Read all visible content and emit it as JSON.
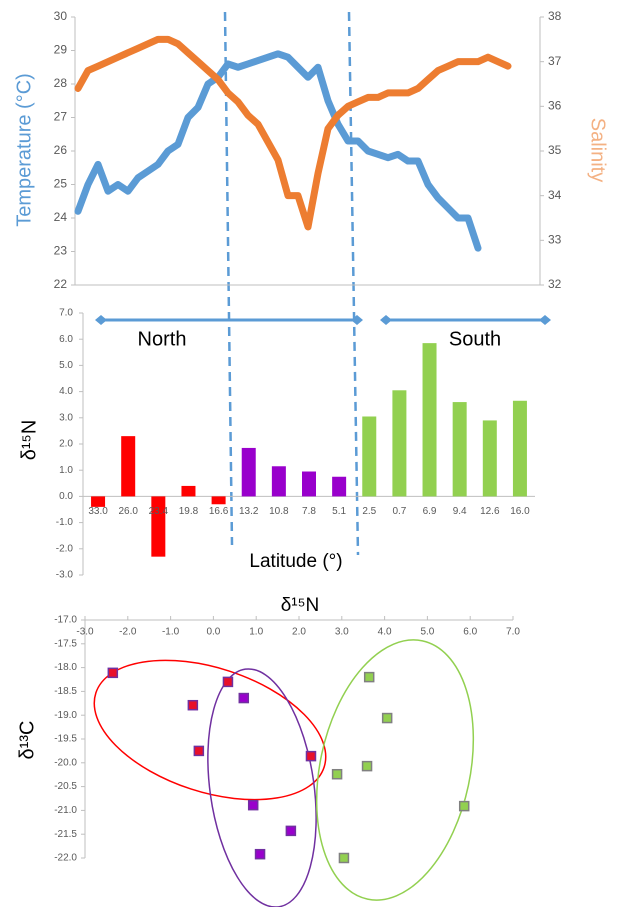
{
  "chart_data": [
    {
      "type": "line",
      "ylabel": "Temperature (°C)",
      "y2label": "Salinity",
      "ylim": [
        22,
        30
      ],
      "yticks": [
        22,
        23,
        24,
        25,
        26,
        27,
        28,
        29,
        30
      ],
      "y2lim": [
        32,
        38
      ],
      "y2ticks": [
        32,
        33,
        34,
        35,
        36,
        37,
        38
      ],
      "series": [
        {
          "color": "#5b9bd5",
          "values": [
            24.2,
            25.0,
            25.6,
            24.8,
            25.0,
            24.8,
            25.2,
            25.4,
            25.6,
            26.0,
            26.2,
            27.0,
            27.3,
            28.0,
            28.2,
            28.6,
            28.5,
            28.6,
            28.7,
            28.8,
            28.9,
            28.8,
            28.5,
            28.2,
            28.5,
            27.5,
            26.8,
            26.3,
            26.3,
            26.0,
            25.9,
            25.8,
            25.9,
            25.7,
            25.7,
            25.0,
            24.6,
            24.3,
            24.0,
            24.0,
            23.1
          ]
        },
        {
          "color": "#ed7d31",
          "axis": "y2",
          "values": [
            36.4,
            36.8,
            36.9,
            37.0,
            37.1,
            37.2,
            37.3,
            37.4,
            37.5,
            37.5,
            37.4,
            37.2,
            37.0,
            36.8,
            36.6,
            36.3,
            36.1,
            35.8,
            35.6,
            35.2,
            34.8,
            34.0,
            34.0,
            33.3,
            34.5,
            35.5,
            35.8,
            36.0,
            36.1,
            36.2,
            36.2,
            36.3,
            36.3,
            36.3,
            36.4,
            36.6,
            36.8,
            36.9,
            37.0,
            37.0,
            37.0,
            37.1,
            37.0,
            36.9
          ]
        }
      ]
    },
    {
      "type": "bar",
      "ylabel": "δ¹⁵N",
      "xlabel": "Latitude (°)",
      "annotations": [
        "North",
        "South"
      ],
      "categories": [
        "33.0",
        "26.0",
        "23.4",
        "19.8",
        "16.6",
        "13.2",
        "10.8",
        "7.8",
        "5.1",
        "2.5",
        "0.7",
        "6.9",
        "9.4",
        "12.6",
        "16.0"
      ],
      "values": [
        -0.4,
        2.3,
        -2.3,
        0.4,
        -0.3,
        1.85,
        1.15,
        0.95,
        0.75,
        3.05,
        4.05,
        5.85,
        3.6,
        2.9,
        3.65
      ],
      "colors": [
        "#ff0000",
        "#ff0000",
        "#ff0000",
        "#ff0000",
        "#ff0000",
        "#9900cc",
        "#9900cc",
        "#9900cc",
        "#9900cc",
        "#92d050",
        "#92d050",
        "#92d050",
        "#92d050",
        "#92d050",
        "#92d050"
      ],
      "ylim": [
        -3,
        7
      ],
      "yticks": [
        {
          "value": -3,
          "label": "-3.0"
        },
        {
          "value": -2,
          "label": "-2.0"
        },
        {
          "value": -1,
          "label": "-1.0"
        },
        {
          "value": 0,
          "label": "0.0"
        },
        {
          "value": 1,
          "label": "1.0"
        },
        {
          "value": 2,
          "label": "2.0"
        },
        {
          "value": 3,
          "label": "3.0"
        },
        {
          "value": 4,
          "label": "4.0"
        },
        {
          "value": 5,
          "label": "5.0"
        },
        {
          "value": 6,
          "label": "6.0"
        },
        {
          "value": 7,
          "label": "7.0"
        }
      ]
    },
    {
      "type": "scatter",
      "xlabel": "δ¹⁵N",
      "ylabel": "δ¹³C",
      "xlim": [
        -3,
        7
      ],
      "xticks": [
        {
          "value": -3,
          "label": "-3.0"
        },
        {
          "value": -2,
          "label": "-2.0"
        },
        {
          "value": -1,
          "label": "-1.0"
        },
        {
          "value": 0,
          "label": "0.0"
        },
        {
          "value": 1,
          "label": "1.0"
        },
        {
          "value": 2,
          "label": "2.0"
        },
        {
          "value": 3,
          "label": "3.0"
        },
        {
          "value": 4,
          "label": "4.0"
        },
        {
          "value": 5,
          "label": "5.0"
        },
        {
          "value": 6,
          "label": "6.0"
        },
        {
          "value": 7,
          "label": "7.0"
        }
      ],
      "ylim": [
        -22,
        -17
      ],
      "yticks": [
        {
          "value": -22,
          "label": "-22.0"
        },
        {
          "value": -21.5,
          "label": "-21.5"
        },
        {
          "value": -21,
          "label": "-21.0"
        },
        {
          "value": -20.5,
          "label": "-20.5"
        },
        {
          "value": -20,
          "label": "-20.0"
        },
        {
          "value": -19.5,
          "label": "-19.5"
        },
        {
          "value": -19,
          "label": "-19.0"
        },
        {
          "value": -18.5,
          "label": "-18.5"
        },
        {
          "value": -18,
          "label": "-18.0"
        },
        {
          "value": -17.5,
          "label": "-17.5"
        },
        {
          "value": -17,
          "label": "-17.0"
        }
      ],
      "series": [
        {
          "color": "#e8102a",
          "edgecolor": "#7030a0",
          "x": [
            -2.35,
            -0.48,
            -0.34,
            0.34,
            2.28
          ],
          "values": [
            -18.11,
            -18.79,
            -19.75,
            -18.3,
            -19.86
          ]
        },
        {
          "color": "#9900cc",
          "edgecolor": "#7030a0",
          "x": [
            0.71,
            0.93,
            1.09,
            1.81
          ],
          "values": [
            -18.64,
            -20.89,
            -21.92,
            -21.43
          ]
        },
        {
          "color": "#92d050",
          "edgecolor": "#808080",
          "x": [
            2.89,
            3.05,
            3.59,
            3.64,
            4.06,
            5.86
          ],
          "values": [
            -20.24,
            -22.0,
            -20.07,
            -18.2,
            -19.06,
            -20.91
          ]
        }
      ]
    }
  ]
}
